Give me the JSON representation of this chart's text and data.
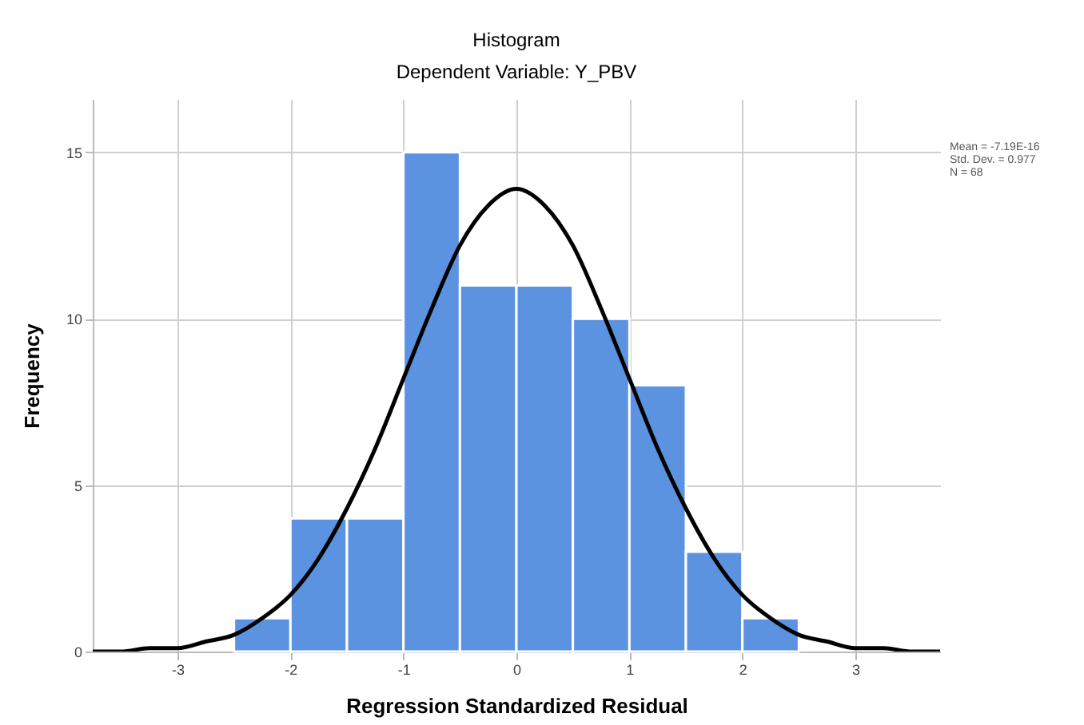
{
  "chart_data": {
    "type": "histogram",
    "title": "Histogram",
    "subtitle": "Dependent Variable: Y_PBV",
    "xlabel": "Regression Standardized Residual",
    "ylabel": "Frequency",
    "bins": [
      -2.5,
      -2,
      -1.5,
      -1,
      -0.5,
      0,
      0.5,
      1,
      1.5,
      2,
      2.5
    ],
    "values": [
      1,
      4,
      4,
      15,
      11,
      11,
      10,
      8,
      3,
      1
    ],
    "color": "#5b93e0",
    "series": [
      {
        "type": "line",
        "color": "#000000",
        "x": [
          -3.75,
          -3.5,
          -3.25,
          -3,
          -2.75,
          -2.5,
          -2.25,
          -2,
          -1.75,
          -1.5,
          -1.25,
          -1,
          -0.75,
          -0.5,
          -0.25,
          0,
          0.25,
          0.5,
          0.75,
          1,
          1.25,
          1.5,
          1.75,
          2,
          2.25,
          2.5,
          2.75,
          3,
          3.25,
          3.5,
          3.75
        ],
        "values": [
          0,
          0,
          0.1,
          0.1,
          0.3,
          0.5,
          1,
          1.7,
          2.8,
          4.3,
          6.1,
          8.2,
          10.3,
          12.2,
          13.4,
          13.9,
          13.4,
          12.2,
          10.3,
          8.2,
          6.1,
          4.3,
          2.8,
          1.7,
          1,
          0.5,
          0.3,
          0.1,
          0.1,
          0,
          0
        ]
      }
    ],
    "xlim": [
      -3.75,
      3.75
    ],
    "ylim": [
      0,
      16.6
    ],
    "xticks": [
      -3,
      -2,
      -1,
      0,
      1,
      2,
      3
    ],
    "yticks": [
      0,
      5,
      10,
      15
    ],
    "grid": true,
    "annotations": [
      "Mean = -7.19E-16",
      "Std. Dev. = 0.977",
      "N = 68"
    ]
  }
}
